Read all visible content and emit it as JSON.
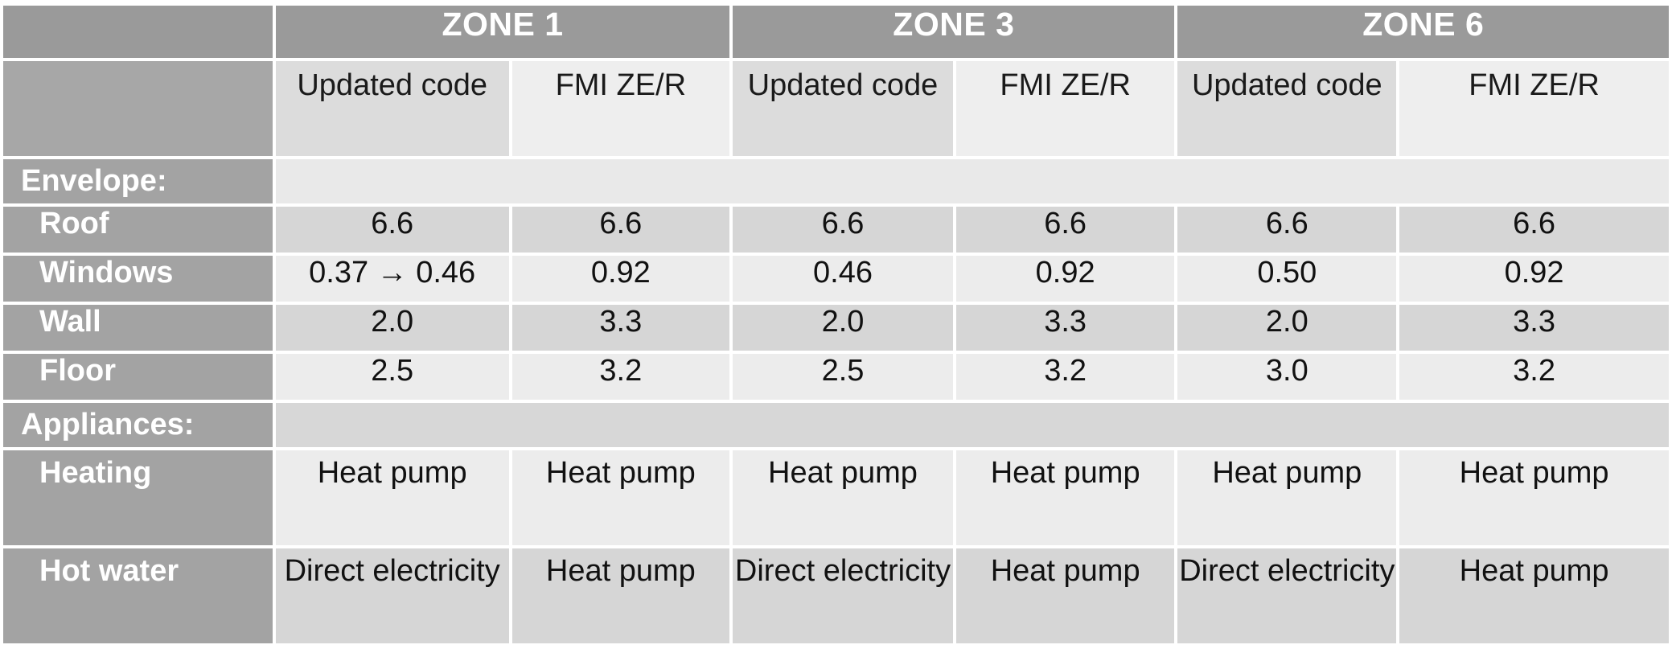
{
  "zones": [
    "ZONE 1",
    "ZONE 3",
    "ZONE 6"
  ],
  "subheaders": [
    "Updated code",
    "FMI ZE/R",
    "Updated code",
    "FMI ZE/R",
    "Updated code",
    "FMI ZE/R"
  ],
  "sections": {
    "envelope": "Envelope:",
    "appliances": "Appliances:"
  },
  "rows": {
    "roof": {
      "label": "Roof",
      "values": [
        "6.6",
        "6.6",
        "6.6",
        "6.6",
        "6.6",
        "6.6"
      ]
    },
    "windows": {
      "label": "Windows",
      "values": [
        "0.37 → 0.46",
        "0.92",
        "0.46",
        "0.92",
        "0.50",
        "0.92"
      ]
    },
    "wall": {
      "label": "Wall",
      "values": [
        "2.0",
        "3.3",
        "2.0",
        "3.3",
        "2.0",
        "3.3"
      ]
    },
    "floor": {
      "label": "Floor",
      "values": [
        "2.5",
        "3.2",
        "2.5",
        "3.2",
        "3.0",
        "3.2"
      ]
    },
    "heating": {
      "label": "Heating",
      "values": [
        "Heat pump",
        "Heat pump",
        "Heat pump",
        "Heat pump",
        "Heat pump",
        "Heat pump"
      ]
    },
    "hot_water": {
      "label": "Hot water",
      "values": [
        "Direct electricity",
        "Heat pump",
        "Direct electricity",
        "Heat pump",
        "Direct electricity",
        "Heat pump"
      ]
    }
  }
}
